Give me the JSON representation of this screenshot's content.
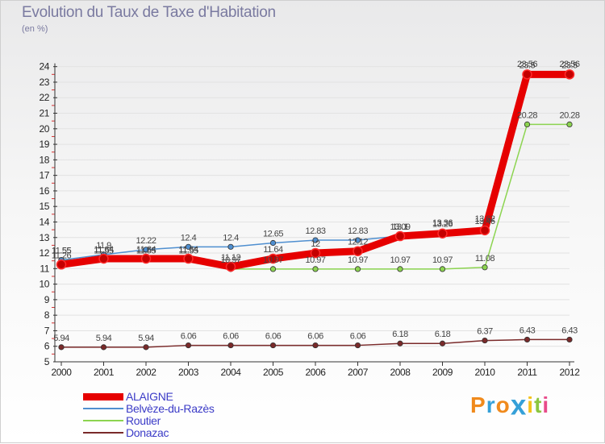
{
  "header": {
    "title": "Evolution du Taux de Taxe d'Habitation",
    "subtitle": "(en %)"
  },
  "chart_data": {
    "type": "line",
    "title": "Evolution du Taux de Taxe d'Habitation",
    "ylabel": "(en %)",
    "xlabel": "",
    "ylim": [
      5,
      24
    ],
    "yticks": [
      5,
      6,
      7,
      8,
      9,
      10,
      11,
      12,
      13,
      14,
      15,
      16,
      17,
      18,
      19,
      20,
      21,
      22,
      23,
      24
    ],
    "categories": [
      "2000",
      "2001",
      "2002",
      "2003",
      "2004",
      "2005",
      "2006",
      "2007",
      "2008",
      "2009",
      "2010",
      "2011",
      "2012"
    ],
    "series": [
      {
        "name": "ALAIGNE",
        "color": "#e60000",
        "values": [
          11.26,
          11.64,
          11.64,
          11.64,
          11.12,
          11.64,
          12.0,
          12.12,
          13.09,
          13.26,
          13.46,
          23.5,
          23.5
        ],
        "labels": [
          "11.26",
          "11.64",
          "11.64",
          "11.64",
          "11.12",
          "11.64",
          "12",
          "12.12",
          "13.09",
          "13.26",
          "13.46",
          "23.5",
          "23.5"
        ]
      },
      {
        "name": "Belvèze-du-Razès",
        "color": "#4f8fd0",
        "values": [
          11.55,
          11.9,
          12.22,
          12.4,
          12.4,
          12.65,
          12.83,
          12.83,
          13.1,
          13.36,
          13.62,
          23.56,
          23.56
        ],
        "labels": [
          "11.55",
          "11.9",
          "12.22",
          "12.4",
          "12.4",
          "12.65",
          "12.83",
          "12.83",
          "13.1",
          "13.36",
          "13.62",
          "23.56",
          "23.56"
        ]
      },
      {
        "name": "Routier",
        "color": "#8cd450",
        "values": [
          11.55,
          11.55,
          11.55,
          11.55,
          10.97,
          10.97,
          10.97,
          10.97,
          10.97,
          10.97,
          11.08,
          20.28,
          20.28
        ],
        "labels": [
          "11.55",
          "11.55",
          "11.55",
          "11.55",
          "10.97",
          "10.97",
          "10.97",
          "10.97",
          "10.97",
          "10.97",
          "11.08",
          "20.28",
          "20.28"
        ]
      },
      {
        "name": "Donazac",
        "color": "#7a2a2a",
        "values": [
          5.94,
          5.94,
          5.94,
          6.06,
          6.06,
          6.06,
          6.06,
          6.06,
          6.18,
          6.18,
          6.37,
          6.43,
          6.43
        ],
        "labels": [
          "5.94",
          "5.94",
          "5.94",
          "6.06",
          "6.06",
          "6.06",
          "6.06",
          "6.06",
          "6.18",
          "6.18",
          "6.37",
          "6.43",
          "6.43"
        ]
      }
    ]
  },
  "legend": {
    "items": [
      {
        "name": "ALAIGNE",
        "color": "#e60000"
      },
      {
        "name": "Belvèze-du-Razès",
        "color": "#4f8fd0"
      },
      {
        "name": "Routier",
        "color": "#8cd450"
      },
      {
        "name": "Donazac",
        "color": "#7a2a2a"
      }
    ]
  },
  "logo": {
    "letters": [
      "P",
      "r",
      "o",
      "x",
      "i",
      "t",
      "i"
    ],
    "colors": [
      "#f08a1c",
      "#35a0d8",
      "#f08a1c",
      "#35a0d8",
      "#f4c21a",
      "#8cc63f",
      "#e84b8a"
    ]
  }
}
